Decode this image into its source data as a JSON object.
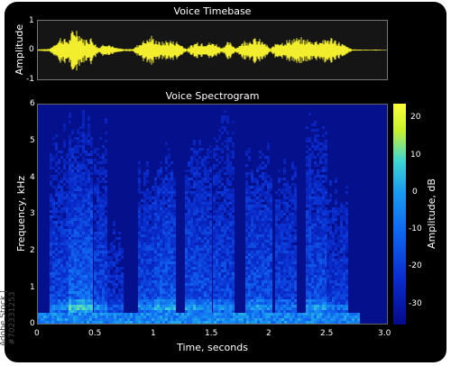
{
  "watermark": "Adobe Stock | #702331253",
  "chart_data": [
    {
      "type": "area",
      "title": "Voice Timebase",
      "ylabel": "Amplitude",
      "xlabel": "",
      "ylim": [
        -1,
        1
      ],
      "yticks": [
        "1",
        "0",
        "-1"
      ],
      "xlim": [
        0,
        3.0
      ],
      "grid": false,
      "color": "#f2ee2e",
      "series": [
        {
          "x": [
            0.0,
            0.1,
            0.2,
            0.26,
            0.32,
            0.36,
            0.4,
            0.46,
            0.52,
            0.58,
            0.66,
            0.74,
            0.82,
            0.9,
            0.98,
            1.05,
            1.12,
            1.2,
            1.28,
            1.36,
            1.44,
            1.52,
            1.58,
            1.64,
            1.7,
            1.78,
            1.86,
            1.94,
            2.0,
            2.06,
            2.12,
            2.2,
            2.3,
            2.36,
            2.44,
            2.52,
            2.6,
            2.7,
            2.8,
            2.9,
            3.0
          ],
          "values": [
            0.04,
            0.05,
            0.55,
            0.4,
            0.95,
            0.7,
            0.42,
            0.55,
            0.1,
            0.32,
            0.1,
            0.04,
            0.06,
            0.4,
            0.55,
            0.3,
            0.4,
            0.35,
            0.05,
            0.35,
            0.3,
            0.3,
            0.1,
            0.35,
            0.1,
            0.4,
            0.48,
            0.35,
            0.05,
            0.38,
            0.35,
            0.48,
            0.45,
            0.4,
            0.42,
            0.5,
            0.3,
            0.03,
            0.02,
            0.02,
            0.01
          ]
        }
      ]
    },
    {
      "type": "heatmap",
      "title": "Voice Spectrogram",
      "xlabel": "Time, seconds",
      "ylabel": "Frequency, kHz",
      "xlim": [
        0,
        3.0
      ],
      "ylim": [
        0,
        6
      ],
      "xticks": [
        "0",
        "0.5",
        "1",
        "1.5",
        "2",
        "2.5",
        "3.0"
      ],
      "yticks": [
        "6",
        "5",
        "4",
        "3",
        "2",
        "1",
        "0"
      ],
      "colorbar": {
        "label": "Amplitude, dB",
        "range": [
          -35,
          23
        ],
        "ticks": [
          "20",
          "10",
          "0",
          "-10",
          "-20",
          "-30"
        ]
      },
      "background_color": "#05108c",
      "bursts": [
        {
          "t_start": 0.1,
          "t_end": 0.26,
          "f_top": 5.6,
          "level": 0.55
        },
        {
          "t_start": 0.26,
          "t_end": 0.46,
          "f_top": 6.0,
          "level": 0.75
        },
        {
          "t_start": 0.48,
          "t_end": 0.6,
          "f_top": 5.8,
          "level": 0.55
        },
        {
          "t_start": 0.6,
          "t_end": 0.72,
          "f_top": 3.0,
          "level": 0.35
        },
        {
          "t_start": 0.86,
          "t_end": 1.0,
          "f_top": 4.6,
          "level": 0.55
        },
        {
          "t_start": 1.0,
          "t_end": 1.18,
          "f_top": 5.0,
          "level": 0.65
        },
        {
          "t_start": 1.26,
          "t_end": 1.48,
          "f_top": 5.2,
          "level": 0.6
        },
        {
          "t_start": 1.5,
          "t_end": 1.68,
          "f_top": 6.0,
          "level": 0.55
        },
        {
          "t_start": 1.78,
          "t_end": 2.0,
          "f_top": 5.0,
          "level": 0.6
        },
        {
          "t_start": 2.04,
          "t_end": 2.22,
          "f_top": 4.8,
          "level": 0.5
        },
        {
          "t_start": 2.3,
          "t_end": 2.48,
          "f_top": 6.0,
          "level": 0.6
        },
        {
          "t_start": 2.48,
          "t_end": 2.66,
          "f_top": 4.2,
          "level": 0.45
        }
      ]
    }
  ]
}
